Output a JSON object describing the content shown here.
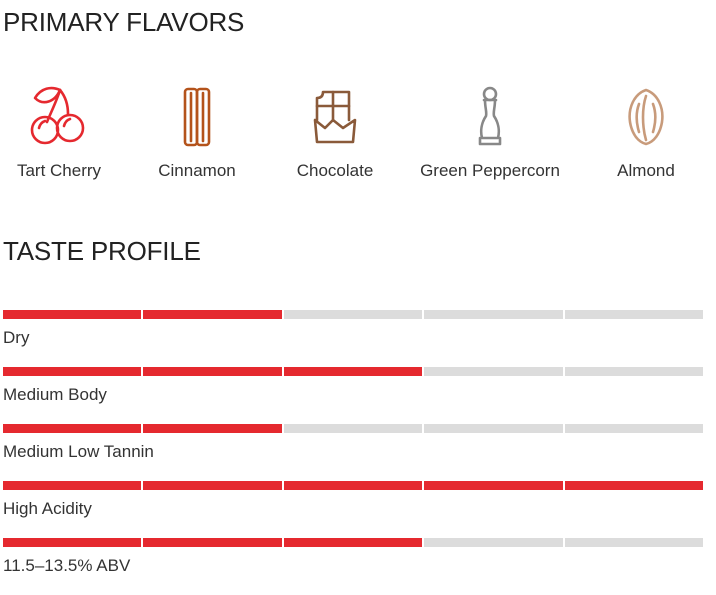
{
  "primary_flavors": {
    "title": "PRIMARY FLAVORS",
    "items": [
      {
        "label": "Tart Cherry",
        "icon": "cherry-icon",
        "color": "#e5292f"
      },
      {
        "label": "Cinnamon",
        "icon": "cinnamon-icon",
        "color": "#b4531b"
      },
      {
        "label": "Chocolate",
        "icon": "chocolate-icon",
        "color": "#8a5a3a"
      },
      {
        "label": "Green Peppercorn",
        "icon": "pepper-mill-icon",
        "color": "#888888"
      },
      {
        "label": "Almond",
        "icon": "almond-icon",
        "color": "#c89b7b"
      }
    ]
  },
  "taste_profile": {
    "title": "TASTE PROFILE",
    "scale_max": 5,
    "active_color": "#e5292f",
    "inactive_color": "#dcdcdc",
    "rows": [
      {
        "label": "Dry",
        "level": 2
      },
      {
        "label": "Medium Body",
        "level": 3
      },
      {
        "label": "Medium Low Tannin",
        "level": 2
      },
      {
        "label": "High Acidity",
        "level": 5
      },
      {
        "label": "11.5–13.5% ABV",
        "level": 3
      }
    ]
  }
}
